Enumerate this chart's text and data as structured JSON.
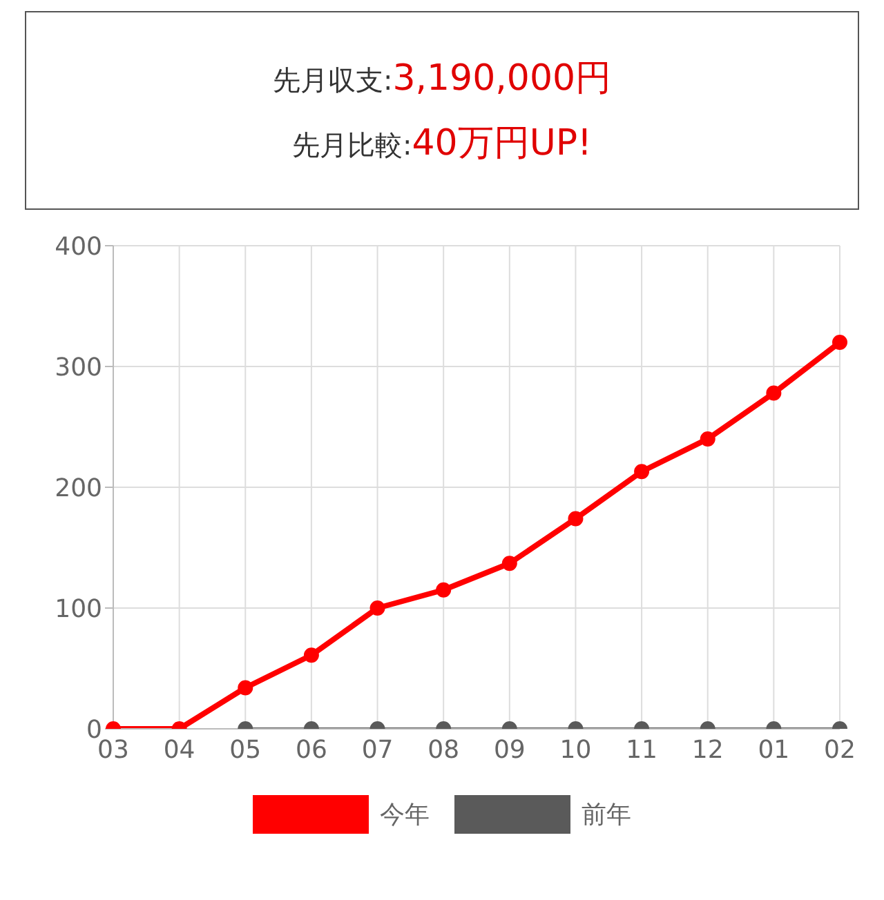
{
  "chart_data": {
    "type": "line",
    "annotations": [
      "先月収支:",
      "3,190,000円",
      "先月比較:",
      "40万円UP!"
    ],
    "categories": [
      "03",
      "04",
      "05",
      "06",
      "07",
      "08",
      "09",
      "10",
      "11",
      "12",
      "01",
      "02"
    ],
    "series": [
      {
        "name": "今年",
        "color": "#ff0000",
        "values": [
          0,
          0,
          34,
          61,
          100,
          115,
          137,
          174,
          213,
          240,
          278,
          320
        ]
      },
      {
        "name": "前年",
        "color": "#5a5a5a",
        "values": [
          null,
          null,
          0,
          0,
          0,
          0,
          0,
          0,
          0,
          0,
          0,
          0
        ]
      }
    ],
    "ylim": [
      0,
      400
    ],
    "yticks": [
      0,
      100,
      200,
      300,
      400
    ],
    "grid": true,
    "legend": "bottom",
    "marker": "circle",
    "line_style": "solid"
  }
}
